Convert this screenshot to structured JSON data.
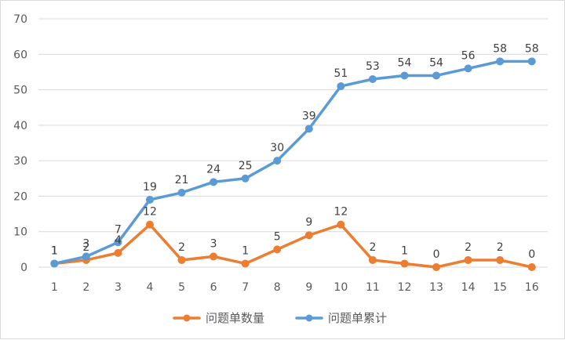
{
  "chart_data": {
    "type": "line",
    "title": "",
    "xlabel": "",
    "ylabel": "",
    "categories": [
      "1",
      "2",
      "3",
      "4",
      "5",
      "6",
      "7",
      "8",
      "9",
      "10",
      "11",
      "12",
      "13",
      "14",
      "15",
      "16"
    ],
    "ylim": [
      0,
      70
    ],
    "yticks": [
      0,
      10,
      20,
      30,
      40,
      50,
      60,
      70
    ],
    "grid": true,
    "legend_position": "bottom",
    "series": [
      {
        "name": "问题单数量",
        "color": "#ED7D31",
        "values": [
          1,
          2,
          4,
          12,
          2,
          3,
          1,
          5,
          9,
          12,
          2,
          1,
          0,
          2,
          2,
          0
        ]
      },
      {
        "name": "问题单累计",
        "color": "#5B9BD5",
        "values": [
          1,
          3,
          7,
          19,
          21,
          24,
          25,
          30,
          39,
          51,
          53,
          54,
          54,
          56,
          58,
          58
        ]
      }
    ]
  }
}
